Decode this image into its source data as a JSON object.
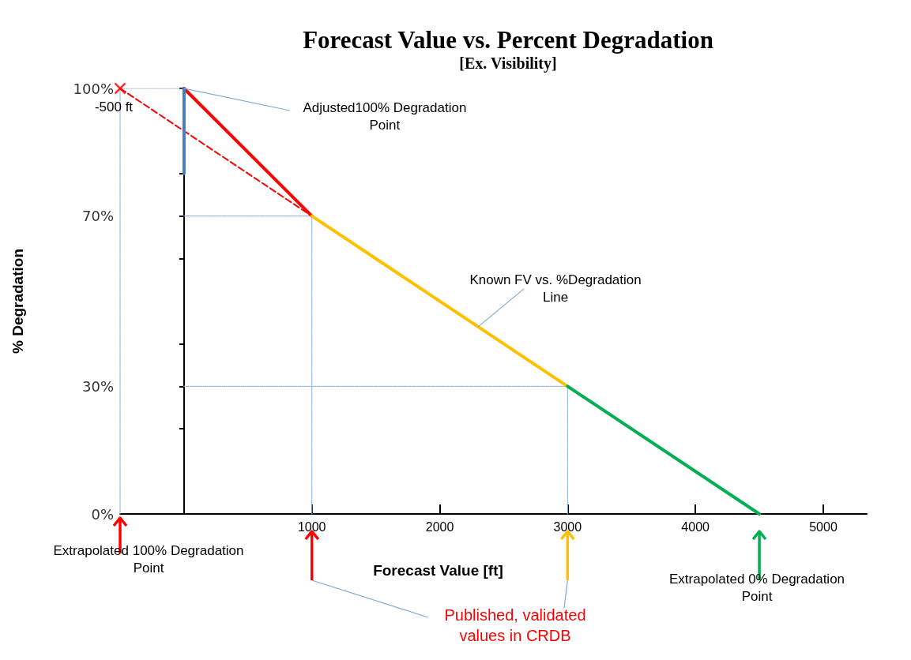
{
  "chart_data": {
    "type": "line",
    "title": "Forecast Value vs. Percent Degradation",
    "subtitle": "[Ex. Visibility]",
    "xlabel": "Forecast Value [ft]",
    "ylabel": "% Degradation",
    "xlim": [
      -500,
      5340
    ],
    "xticks": [
      1000,
      2000,
      3000,
      4000,
      5000
    ],
    "ylim": [
      0,
      100
    ],
    "yticks": [
      {
        "value": 0,
        "label": "0%"
      },
      {
        "value": 20,
        "label": null
      },
      {
        "value": 30,
        "label": "30%"
      },
      {
        "value": 40,
        "label": null
      },
      {
        "value": 60,
        "label": null
      },
      {
        "value": 70,
        "label": "70%"
      },
      {
        "value": 80,
        "label": null
      },
      {
        "value": 100,
        "label": "100%"
      }
    ],
    "marker": "none",
    "series": [
      {
        "color": "#ff0000",
        "x": [
          0,
          1000
        ],
        "values": [
          100,
          70
        ]
      },
      {
        "color": "#ff0000",
        "line_style": "dashed",
        "x": [
          -500,
          1000
        ],
        "values": [
          100,
          70
        ]
      },
      {
        "color": "#ffc000",
        "x": [
          1000,
          3000
        ],
        "values": [
          70,
          30
        ]
      },
      {
        "color": "#00b050",
        "x": [
          3000,
          4500
        ],
        "values": [
          30,
          0
        ]
      },
      {
        "color": "#4a7ebb",
        "x": [
          0,
          0
        ],
        "values": [
          80,
          100
        ]
      },
      {
        "type": "scatter",
        "marker": "cross",
        "color": "#ff0000",
        "x": [
          -500
        ],
        "values": [
          100
        ]
      },
      {
        "color": "#8eb4e3",
        "line_style": "dotted",
        "x": [
          -500,
          0
        ],
        "values": [
          100,
          100
        ]
      },
      {
        "color": "#8eb4e3",
        "line_style": "dotted",
        "x": [
          -500,
          -500
        ],
        "values": [
          0,
          100
        ]
      },
      {
        "color": "#8eb4e3",
        "line_style": "dotted",
        "x": [
          0,
          1000
        ],
        "values": [
          70,
          70
        ]
      },
      {
        "color": "#8eb4e3",
        "line_style": "dotted",
        "x": [
          1000,
          1000
        ],
        "values": [
          0,
          70
        ]
      },
      {
        "color": "#8eb4e3",
        "line_style": "dotted",
        "x": [
          0,
          3000
        ],
        "values": [
          30,
          30
        ]
      },
      {
        "color": "#8eb4e3",
        "line_style": "dotted",
        "x": [
          3000,
          3000
        ],
        "values": [
          0,
          30
        ]
      }
    ],
    "annotations": [
      {
        "text": "-500 ft",
        "x": -500,
        "y": 100
      },
      {
        "text": "Adjusted100% Degradation Point",
        "x": 0,
        "y": 100
      },
      {
        "text": "Known FV vs. %Degradation Line",
        "x": 2300,
        "y": 44
      },
      {
        "text": "Extrapolated 100% Degradation Point",
        "x": -500,
        "y": 0
      },
      "Extrapolated 0% Degradation Point",
      "Published, validated values in CRDB"
    ]
  }
}
